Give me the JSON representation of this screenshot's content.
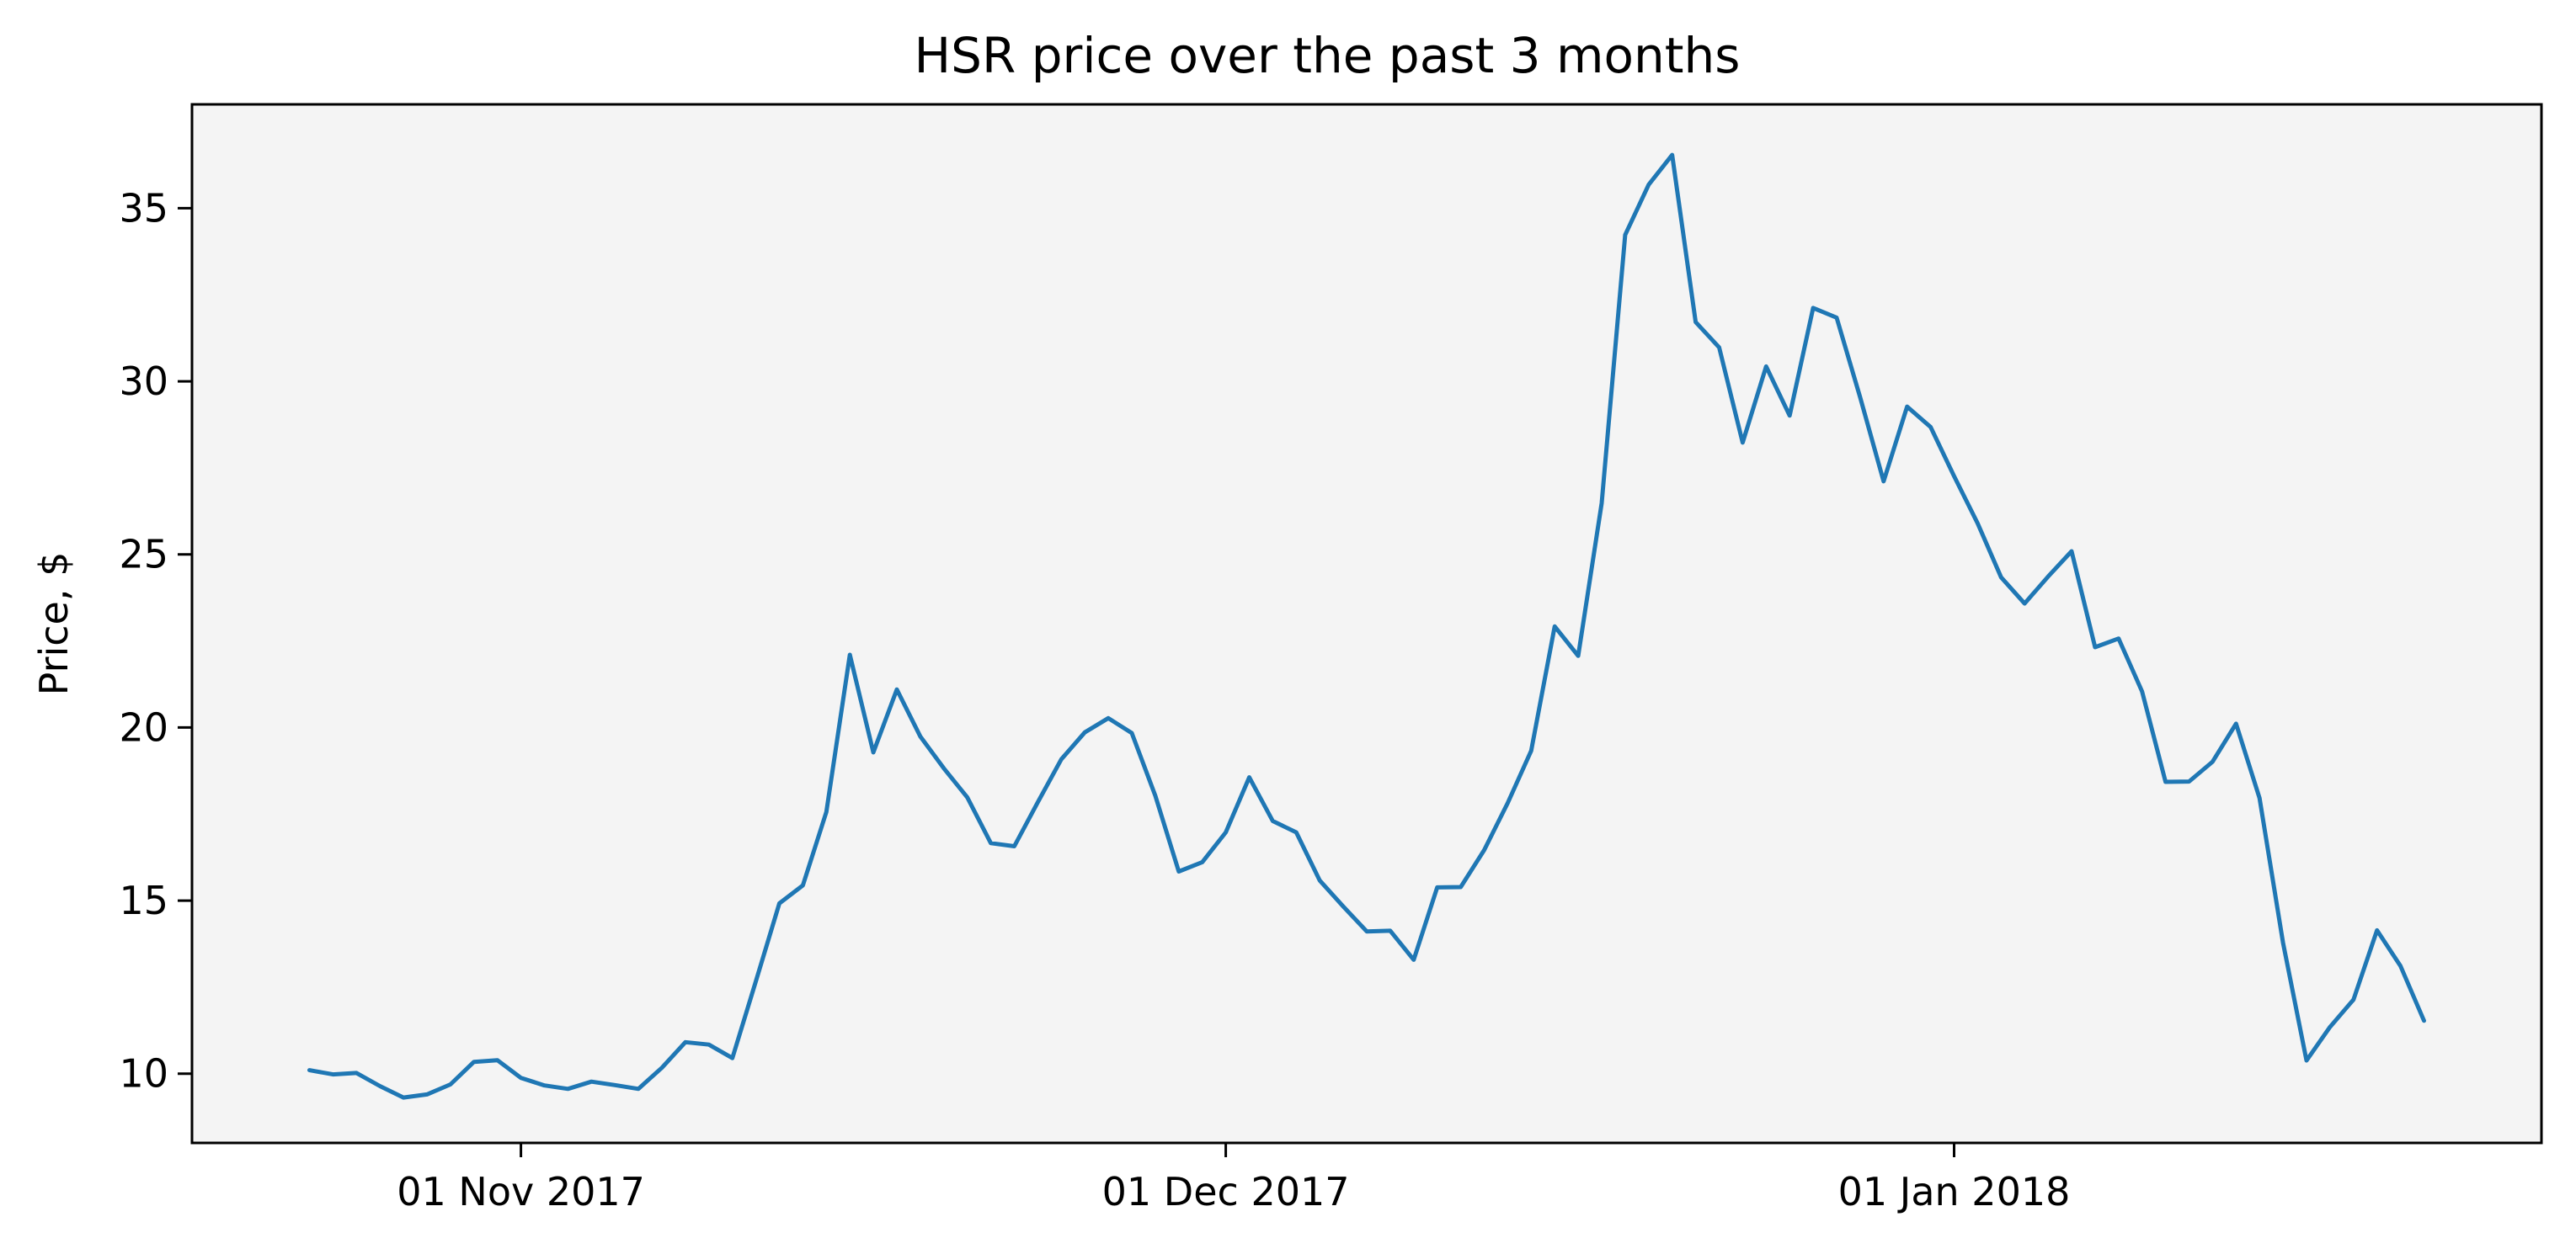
{
  "chart_data": {
    "type": "line",
    "title": "HSR price over the past 3 months",
    "xlabel": "",
    "ylabel": "Price, $",
    "x_start": "2017-10-23",
    "x_step_days": 1,
    "xticks": [
      {
        "date": "2017-11-01",
        "label": "01 Nov 2017"
      },
      {
        "date": "2017-12-01",
        "label": "01 Dec 2017"
      },
      {
        "date": "2018-01-01",
        "label": "01 Jan 2018"
      }
    ],
    "yticks": [
      10,
      15,
      20,
      25,
      30,
      35
    ],
    "xlim": [
      "2017-10-18",
      "2018-01-26"
    ],
    "ylim": [
      8,
      38
    ],
    "grid": false,
    "legend": "none",
    "background": "#f4f4f4",
    "series": [
      {
        "color": "#1f77b4",
        "values": [
          10.1,
          9.98,
          10.02,
          9.64,
          9.31,
          9.4,
          9.69,
          10.34,
          10.39,
          9.88,
          9.66,
          9.56,
          9.77,
          9.67,
          9.56,
          10.17,
          10.91,
          10.84,
          10.45,
          12.67,
          14.92,
          15.44,
          17.56,
          22.1,
          19.28,
          21.1,
          19.74,
          18.82,
          17.98,
          16.66,
          16.57,
          17.84,
          19.08,
          19.86,
          20.27,
          19.84,
          18.03,
          15.84,
          16.11,
          16.97,
          18.56,
          17.3,
          16.97,
          15.58,
          14.83,
          14.11,
          14.13,
          13.29,
          15.38,
          15.39,
          16.46,
          17.82,
          19.33,
          22.92,
          22.07,
          26.48,
          34.23,
          35.68,
          36.54,
          31.71,
          30.98,
          28.23,
          30.43,
          29.01,
          32.12,
          31.84,
          29.54,
          27.11,
          29.27,
          28.68,
          27.26,
          25.9,
          24.34,
          23.58,
          24.36,
          25.09,
          22.32,
          22.57,
          21.04,
          18.43,
          18.44,
          19.01,
          20.11,
          17.96,
          13.78,
          10.38,
          11.35,
          12.14,
          14.14,
          13.11,
          11.53
        ]
      }
    ]
  }
}
